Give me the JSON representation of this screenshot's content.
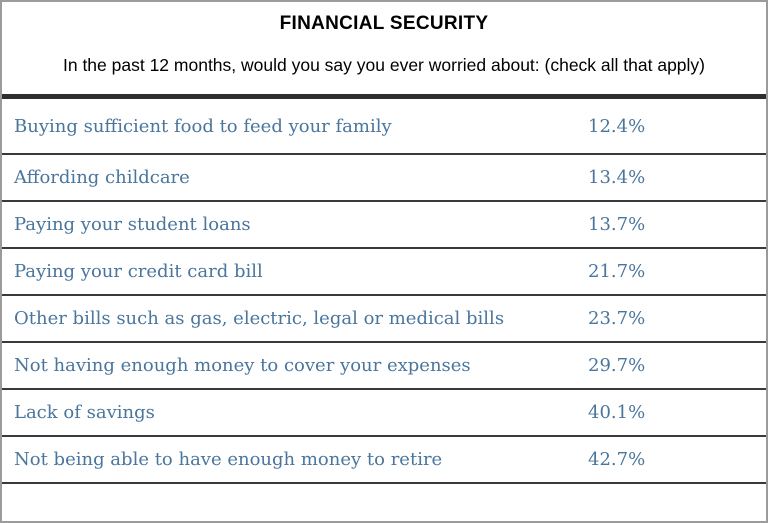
{
  "header": {
    "title": "FINANCIAL SECURITY",
    "subtitle": "In the past 12 months, would you say you ever worried about: (check all that apply)"
  },
  "colors": {
    "row_text": "#4a759d",
    "heading_text": "#000000",
    "thick_rule": "#2e2e2e",
    "row_separator": "#3a3a3a",
    "outer_border": "#9b9b9b",
    "background": "#ffffff"
  },
  "chart_data": {
    "type": "table",
    "title": "FINANCIAL SECURITY",
    "subtitle": "In the past 12 months, would you say you ever worried about: (check all that apply)",
    "categories": [
      "Buying sufficient food to feed your family",
      "Affording childcare",
      "Paying your student loans",
      "Paying your credit card bill",
      "Other bills such as gas, electric, legal or medical bills",
      "Not having enough money to cover your expenses",
      "Lack of savings",
      "Not being able to have enough money to retire"
    ],
    "values": [
      12.4,
      13.4,
      13.7,
      21.7,
      23.7,
      29.7,
      40.1,
      42.7
    ],
    "value_labels": [
      "12.4%",
      "13.4%",
      "13.7%",
      "21.7%",
      "23.7%",
      "29.7%",
      "40.1%",
      "42.7%"
    ]
  },
  "table": {
    "rows": [
      {
        "label": "Buying sufficient food to feed your family",
        "value": "12.4%"
      },
      {
        "label": "Affording childcare",
        "value": "13.4%"
      },
      {
        "label": "Paying your student loans",
        "value": "13.7%"
      },
      {
        "label": "Paying your credit card bill",
        "value": "21.7%"
      },
      {
        "label": "Other bills such as gas, electric, legal or medical bills",
        "value": "23.7%"
      },
      {
        "label": "Not having enough money to cover your expenses",
        "value": "29.7%"
      },
      {
        "label": "Lack of savings",
        "value": "40.1%"
      },
      {
        "label": "Not being able to have enough money to retire",
        "value": "42.7%"
      }
    ]
  }
}
